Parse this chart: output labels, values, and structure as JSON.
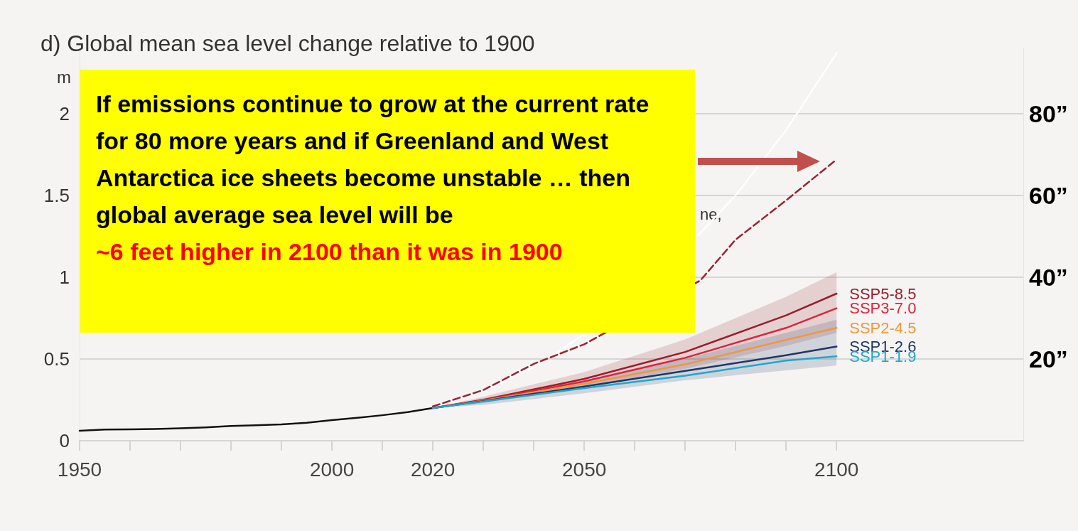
{
  "chart_data": {
    "type": "line",
    "title": "d) Global mean sea level change relative to 1900",
    "ylabel": "m",
    "annotations": [
      "If emissions continue to grow at the current rate for 80 more years and if Greenland and West Antarctica ice sheets become unstable … then global average sea level will be",
      "~6 feet higher in 2100 than it was in 1900",
      "ne,"
    ],
    "x": [
      2020,
      2030,
      2050,
      2070,
      2090,
      2100
    ],
    "xlim": [
      1950,
      2137
    ],
    "xticks": [
      1950,
      {
        "value": 1960,
        "label": null
      },
      {
        "value": 1970,
        "label": null
      },
      {
        "value": 1980,
        "label": null
      },
      {
        "value": 1990,
        "label": null
      },
      2000,
      {
        "value": 2010,
        "label": null
      },
      2020,
      {
        "value": 2030,
        "label": null
      },
      {
        "value": 2040,
        "label": null
      },
      2050,
      {
        "value": 2060,
        "label": null
      },
      {
        "value": 2070,
        "label": null
      },
      {
        "value": 2080,
        "label": null
      },
      {
        "value": 2090,
        "label": null
      },
      2100
    ],
    "ylim": [
      0,
      2.4
    ],
    "yticks": [
      0,
      0.5,
      1,
      1.5,
      2
    ],
    "y2lim": [
      0,
      96
    ],
    "y2ticks": [
      {
        "value": 20,
        "label": "20”"
      },
      {
        "value": 40,
        "label": "40”"
      },
      {
        "value": 60,
        "label": "60”"
      },
      {
        "value": 80,
        "label": "80”"
      }
    ],
    "grid": "y",
    "legend": false,
    "marker": "none",
    "line_style": "solid",
    "series": [
      {
        "color": "#111111",
        "x": [
          1950,
          1955,
          1960,
          1965,
          1970,
          1975,
          1980,
          1985,
          1990,
          1995,
          2000,
          2005,
          2010,
          2015,
          2020
        ],
        "values": [
          0.061,
          0.068,
          0.07,
          0.072,
          0.076,
          0.082,
          0.09,
          0.095,
          0.1,
          0.11,
          0.126,
          0.14,
          0.156,
          0.175,
          0.2
        ]
      },
      {
        "color": "#ffffff",
        "line_style": "dotted",
        "x": [
          2020,
          2030,
          2040,
          2050,
          2060,
          2073,
          2080,
          2090,
          2100
        ],
        "values": [
          0.21,
          0.3,
          0.45,
          0.65,
          null,
          1.27,
          1.5,
          1.9,
          2.37
        ]
      },
      {
        "color": "#9b2335",
        "line_style": "dashed",
        "x": [
          2020,
          2030,
          2040,
          2050,
          2060,
          2073,
          2080,
          2090,
          2100
        ],
        "values": [
          0.21,
          0.31,
          0.47,
          0.59,
          null,
          0.98,
          1.23,
          1.47,
          1.72
        ]
      },
      {
        "name": "SSP5-8.5",
        "color": "#9b1c2c",
        "values": [
          0.2,
          0.25,
          0.378,
          0.543,
          0.767,
          0.9
        ],
        "lower": [
          0.2,
          0.23,
          0.33,
          0.44,
          0.58,
          0.66
        ],
        "upper": [
          0.2,
          0.27,
          0.42,
          0.62,
          0.88,
          1.03
        ]
      },
      {
        "name": "SSP3-7.0",
        "color": "#e0223b",
        "values": [
          0.2,
          0.248,
          0.363,
          0.507,
          0.69,
          0.81
        ]
      },
      {
        "name": "SSP2-4.5",
        "color": "#f0973a",
        "values": [
          0.2,
          0.245,
          0.348,
          0.467,
          0.617,
          0.69
        ]
      },
      {
        "name": "SSP1-2.6",
        "color": "#1f3664",
        "values": [
          0.2,
          0.242,
          0.332,
          0.427,
          0.523,
          0.576
        ],
        "lower": [
          0.2,
          0.22,
          0.29,
          0.37,
          0.43,
          0.46
        ],
        "upper": [
          0.2,
          0.26,
          0.37,
          0.5,
          0.66,
          0.74
        ]
      },
      {
        "name": "SSP1-1.9",
        "color": "#1ea7cf",
        "values": [
          0.2,
          0.24,
          0.322,
          0.398,
          0.49,
          0.516
        ]
      }
    ]
  }
}
